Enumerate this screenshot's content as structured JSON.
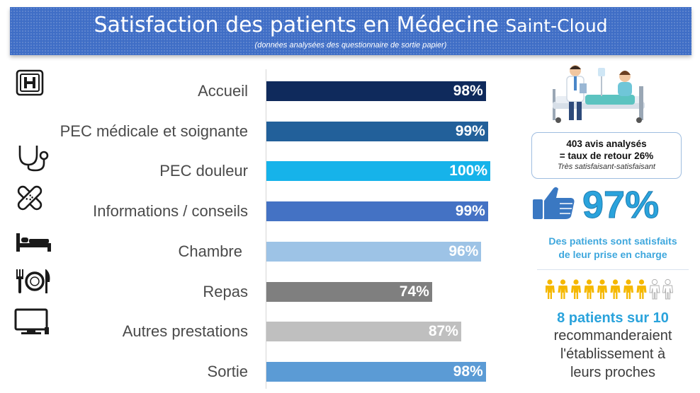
{
  "header": {
    "title_main": "Satisfaction des patients en Médecine",
    "title_place": "Saint-Cloud",
    "subtitle": "(données analysées des questionnaire de sortie papier)"
  },
  "chart_data": {
    "type": "bar",
    "orientation": "horizontal",
    "categories": [
      "Accueil",
      "PEC médicale et soignante",
      "PEC douleur",
      "Informations / conseils",
      "Chambre",
      "Repas",
      "Autres prestations",
      "Sortie"
    ],
    "values": [
      98,
      99,
      100,
      99,
      96,
      74,
      87,
      98
    ],
    "value_labels": [
      "98%",
      "99%",
      "100%",
      "99%",
      "96%",
      "74%",
      "87%",
      "98%"
    ],
    "colors": [
      "#0f2a5c",
      "#22609a",
      "#16b3ea",
      "#4472c4",
      "#9dc3e6",
      "#7f7f7f",
      "#bfbfbf",
      "#5b9bd5"
    ],
    "xlim": [
      0,
      100
    ],
    "grid": false,
    "legend": "none"
  },
  "icons": [
    "hospital-icon",
    "",
    "stethoscope-icon",
    "bandage-icon",
    "bed-icon",
    "cutlery-icon",
    "tv-icon",
    ""
  ],
  "info": {
    "line1": "403 avis analysés",
    "line2": "= taux de retour 26%",
    "line3": "Très satisfaisant-satisfaisant"
  },
  "satisfaction": {
    "percent": "97%",
    "text_line1": "Des patients sont satisfaits",
    "text_line2": "de leur prise en charge"
  },
  "recommendation": {
    "count": 8,
    "total": 10,
    "headline": "8 patients sur 10",
    "line1": "recommanderaient",
    "line2": "l'établissement à",
    "line3": "leurs proches"
  },
  "colors": {
    "header_bg": "#3f6ec6",
    "accent": "#2aa3dc",
    "person_filled": "#f5b800",
    "person_empty": "#b0b0b0"
  }
}
